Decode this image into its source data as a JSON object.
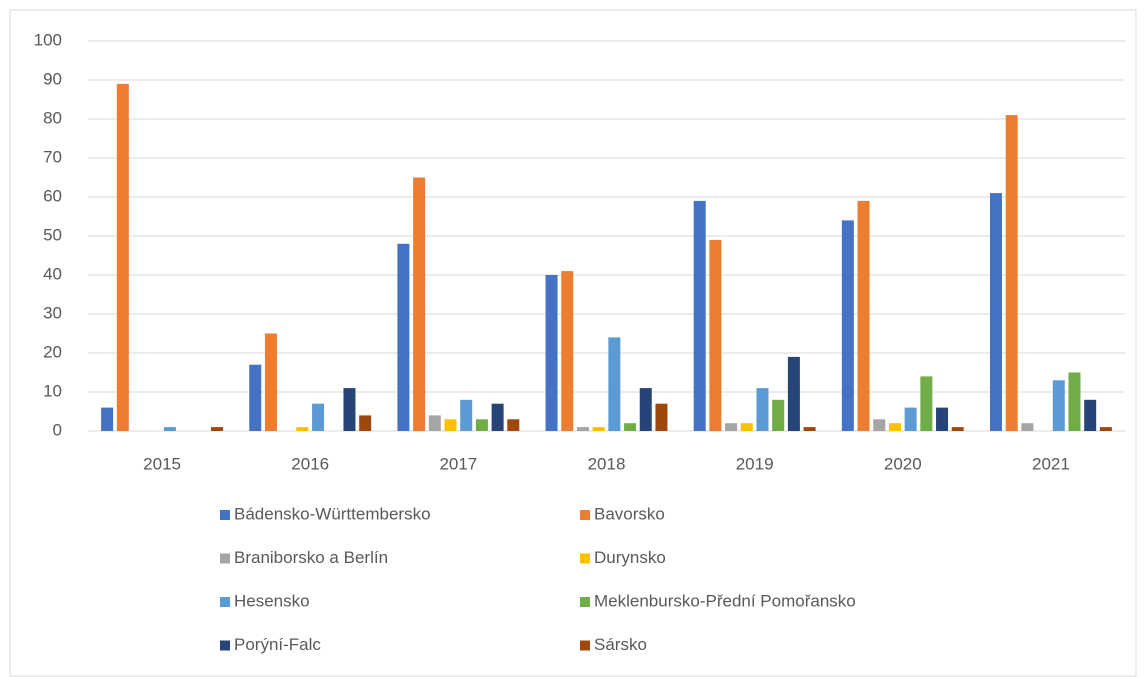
{
  "chart_data": {
    "type": "bar",
    "categories": [
      "2015",
      "2016",
      "2017",
      "2018",
      "2019",
      "2020",
      "2021"
    ],
    "series": [
      {
        "name": "Bádensko-Württembersko",
        "color": "#4472c4",
        "values": [
          6,
          17,
          48,
          40,
          59,
          54,
          61
        ]
      },
      {
        "name": "Bavorsko",
        "color": "#ed7d31",
        "values": [
          89,
          25,
          65,
          41,
          49,
          59,
          81
        ]
      },
      {
        "name": "Braniborsko a Berlín",
        "color": "#a5a5a5",
        "values": [
          0,
          0,
          4,
          1,
          2,
          3,
          2
        ]
      },
      {
        "name": "Durynsko",
        "color": "#ffc000",
        "values": [
          0,
          1,
          3,
          1,
          2,
          2,
          0
        ]
      },
      {
        "name": "Hesensko",
        "color": "#5b9bd5",
        "values": [
          1,
          7,
          8,
          24,
          11,
          6,
          13
        ]
      },
      {
        "name": "Meklenbursko-Přední Pomořansko",
        "color": "#70ad47",
        "values": [
          0,
          0,
          3,
          2,
          8,
          14,
          15
        ]
      },
      {
        "name": "Porýní-Falc",
        "color": "#264478",
        "values": [
          0,
          11,
          7,
          11,
          19,
          6,
          8
        ]
      },
      {
        "name": "Sársko",
        "color": "#9e480e",
        "values": [
          1,
          4,
          3,
          7,
          1,
          1,
          1
        ]
      }
    ],
    "ylim": [
      0,
      100
    ],
    "yticks": [
      0,
      10,
      20,
      30,
      40,
      50,
      60,
      70,
      80,
      90,
      100
    ],
    "grid": true,
    "legend": "bottom"
  }
}
